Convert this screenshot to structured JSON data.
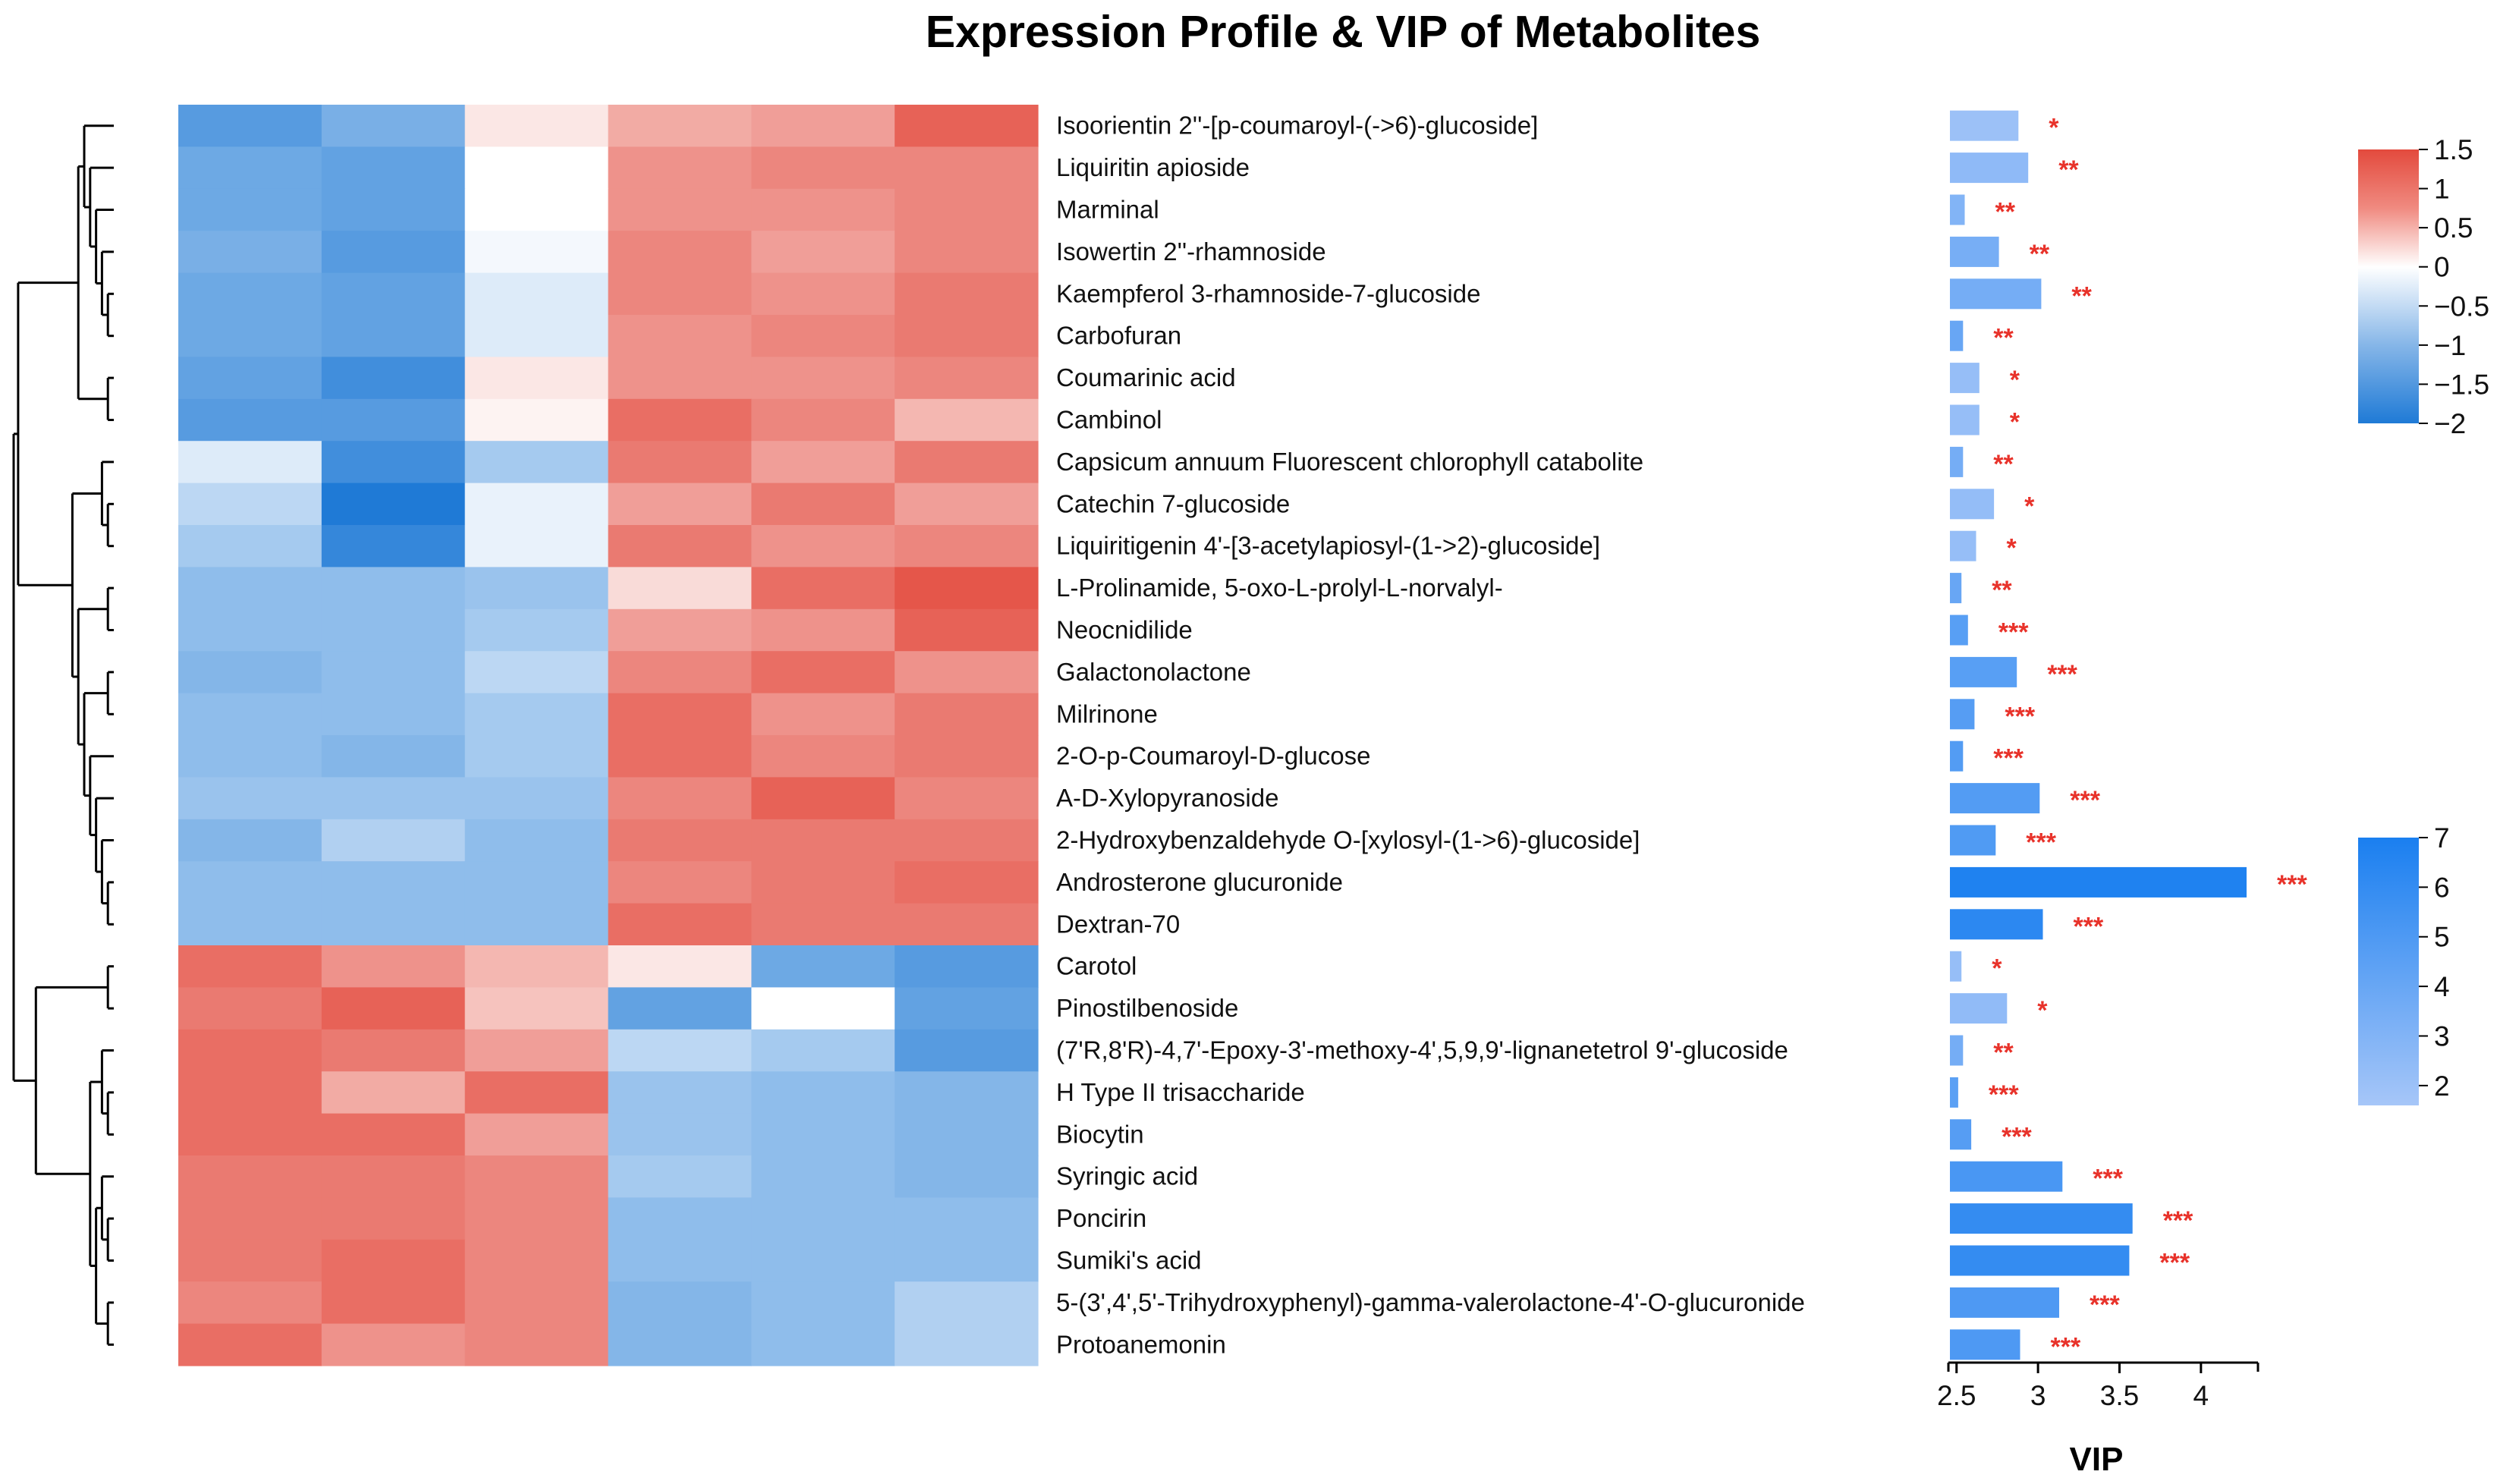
{
  "chart_data": {
    "type": "heatmap",
    "title": "Expression Profile & VIP of Metabolites",
    "xlabel": "VIP",
    "metabolites": [
      "Isoorientin 2''-[p-coumaroyl-(->6)-glucoside]",
      "Liquiritin apioside",
      "Marminal",
      "Isowertin 2''-rhamnoside",
      "Kaempferol 3-rhamnoside-7-glucoside",
      "Carbofuran",
      "Coumarinic acid",
      "Cambinol",
      "Capsicum annuum Fluorescent chlorophyll catabolite",
      "Catechin 7-glucoside",
      "Liquiritigenin 4'-[3-acetylapiosyl-(1->2)-glucoside]",
      "L-Prolinamide, 5-oxo-L-prolyl-L-norvalyl-",
      "Neocnidilide",
      "Galactonolactone",
      "Milrinone",
      "2-O-p-Coumaroyl-D-glucose",
      "A-D-Xylopyranoside",
      "2-Hydroxybenzaldehyde O-[xylosyl-(1->6)-glucoside]",
      "Androsterone glucuronide",
      "Dextran-70",
      "Carotol",
      "Pinostilbenoside",
      "(7'R,8'R)-4,7'-Epoxy-3'-methoxy-4',5,9,9'-lignanetetrol 9'-glucoside",
      "H Type II trisaccharide",
      "Biocytin",
      "Syringic acid",
      "Poncirin",
      "Sumiki's acid",
      "5-(3',4',5'-Trihydroxyphenyl)-gamma-valerolactone-4'-O-glucuronide",
      "Protoanemonin"
    ],
    "heatmap_values": [
      [
        -1.5,
        -1.2,
        0.2,
        0.7,
        0.8,
        1.3
      ],
      [
        -1.3,
        -1.4,
        0.0,
        0.9,
        1.0,
        1.0
      ],
      [
        -1.3,
        -1.4,
        0.0,
        0.9,
        0.9,
        1.0
      ],
      [
        -1.2,
        -1.5,
        -0.1,
        1.0,
        0.8,
        1.0
      ],
      [
        -1.3,
        -1.4,
        -0.3,
        1.0,
        0.9,
        1.1
      ],
      [
        -1.3,
        -1.4,
        -0.3,
        0.9,
        1.0,
        1.1
      ],
      [
        -1.4,
        -1.7,
        0.2,
        0.9,
        0.9,
        1.0
      ],
      [
        -1.5,
        -1.5,
        0.1,
        1.2,
        1.0,
        0.6
      ],
      [
        -0.3,
        -1.7,
        -0.8,
        1.1,
        0.8,
        1.1
      ],
      [
        -0.6,
        -2.0,
        -0.2,
        0.8,
        1.1,
        0.8
      ],
      [
        -0.8,
        -1.8,
        -0.2,
        1.1,
        0.9,
        1.0
      ],
      [
        -1.0,
        -1.0,
        -0.9,
        0.3,
        1.2,
        1.4
      ],
      [
        -1.0,
        -1.0,
        -0.8,
        0.8,
        0.9,
        1.3
      ],
      [
        -1.1,
        -1.0,
        -0.6,
        1.0,
        1.2,
        0.9
      ],
      [
        -1.0,
        -1.0,
        -0.8,
        1.2,
        0.9,
        1.1
      ],
      [
        -1.0,
        -1.1,
        -0.8,
        1.2,
        1.0,
        1.1
      ],
      [
        -0.9,
        -0.9,
        -0.9,
        1.0,
        1.3,
        1.0
      ],
      [
        -1.1,
        -0.7,
        -1.0,
        1.1,
        1.1,
        1.1
      ],
      [
        -1.0,
        -1.0,
        -1.0,
        1.0,
        1.1,
        1.2
      ],
      [
        -1.0,
        -1.0,
        -1.0,
        1.2,
        1.1,
        1.1
      ],
      [
        1.2,
        0.9,
        0.6,
        0.2,
        -1.3,
        -1.5
      ],
      [
        1.1,
        1.3,
        0.5,
        -1.4,
        0.0,
        -1.4
      ],
      [
        1.2,
        1.1,
        0.8,
        -0.6,
        -0.8,
        -1.5
      ],
      [
        1.2,
        0.7,
        1.2,
        -0.9,
        -1.0,
        -1.1
      ],
      [
        1.2,
        1.2,
        0.8,
        -0.9,
        -1.0,
        -1.1
      ],
      [
        1.1,
        1.1,
        1.0,
        -0.8,
        -1.0,
        -1.1
      ],
      [
        1.1,
        1.1,
        1.0,
        -1.0,
        -1.0,
        -1.0
      ],
      [
        1.1,
        1.2,
        1.0,
        -1.0,
        -1.0,
        -1.0
      ],
      [
        1.0,
        1.2,
        1.0,
        -1.1,
        -1.0,
        -0.7
      ],
      [
        1.2,
        0.9,
        1.0,
        -1.1,
        -1.0,
        -0.7
      ]
    ],
    "vip_values": [
      2.88,
      2.94,
      2.55,
      2.76,
      3.02,
      2.54,
      2.64,
      2.64,
      2.54,
      2.73,
      2.62,
      2.53,
      2.57,
      2.87,
      2.61,
      2.54,
      3.01,
      2.74,
      4.28,
      3.03,
      2.53,
      2.81,
      2.54,
      2.51,
      2.59,
      3.15,
      3.58,
      3.56,
      3.13,
      2.89
    ],
    "vip_color_values": [
      2.0,
      2.5,
      3.0,
      3.4,
      3.5,
      4.0,
      2.2,
      2.2,
      3.5,
      2.3,
      2.2,
      4.0,
      4.6,
      4.6,
      4.7,
      4.8,
      4.8,
      4.9,
      6.8,
      6.3,
      2.2,
      2.4,
      3.5,
      4.5,
      4.7,
      5.2,
      6.0,
      6.0,
      5.0,
      5.0
    ],
    "significance": [
      "*",
      "**",
      "**",
      "**",
      "**",
      "**",
      "*",
      "*",
      "**",
      "*",
      "*",
      "**",
      "***",
      "***",
      "***",
      "***",
      "***",
      "***",
      "***",
      "***",
      "*",
      "*",
      "**",
      "***",
      "***",
      "***",
      "***",
      "***",
      "***",
      "***"
    ],
    "vip_axis": {
      "ticks": [
        "2.5",
        "3",
        "3.5",
        "4"
      ],
      "xlim": [
        2.45,
        4.35
      ]
    },
    "heatmap_scale": {
      "ticks": [
        "1.5",
        "1",
        "0.5",
        "0",
        "−0.5",
        "−1",
        "−1.5",
        "−2"
      ],
      "range": [
        -2,
        1.5
      ],
      "colors": {
        "high": "#e34a3d",
        "mid": "#ffffff",
        "low": "#1f7ad6"
      }
    },
    "vip_scale": {
      "ticks": [
        "7",
        "6",
        "5",
        "4",
        "3",
        "2"
      ],
      "range": [
        1.6,
        7.0
      ],
      "colors": {
        "high": "#1a7ff0",
        "low": "#a6c6f8"
      }
    },
    "significance_color": "#e8322a"
  }
}
